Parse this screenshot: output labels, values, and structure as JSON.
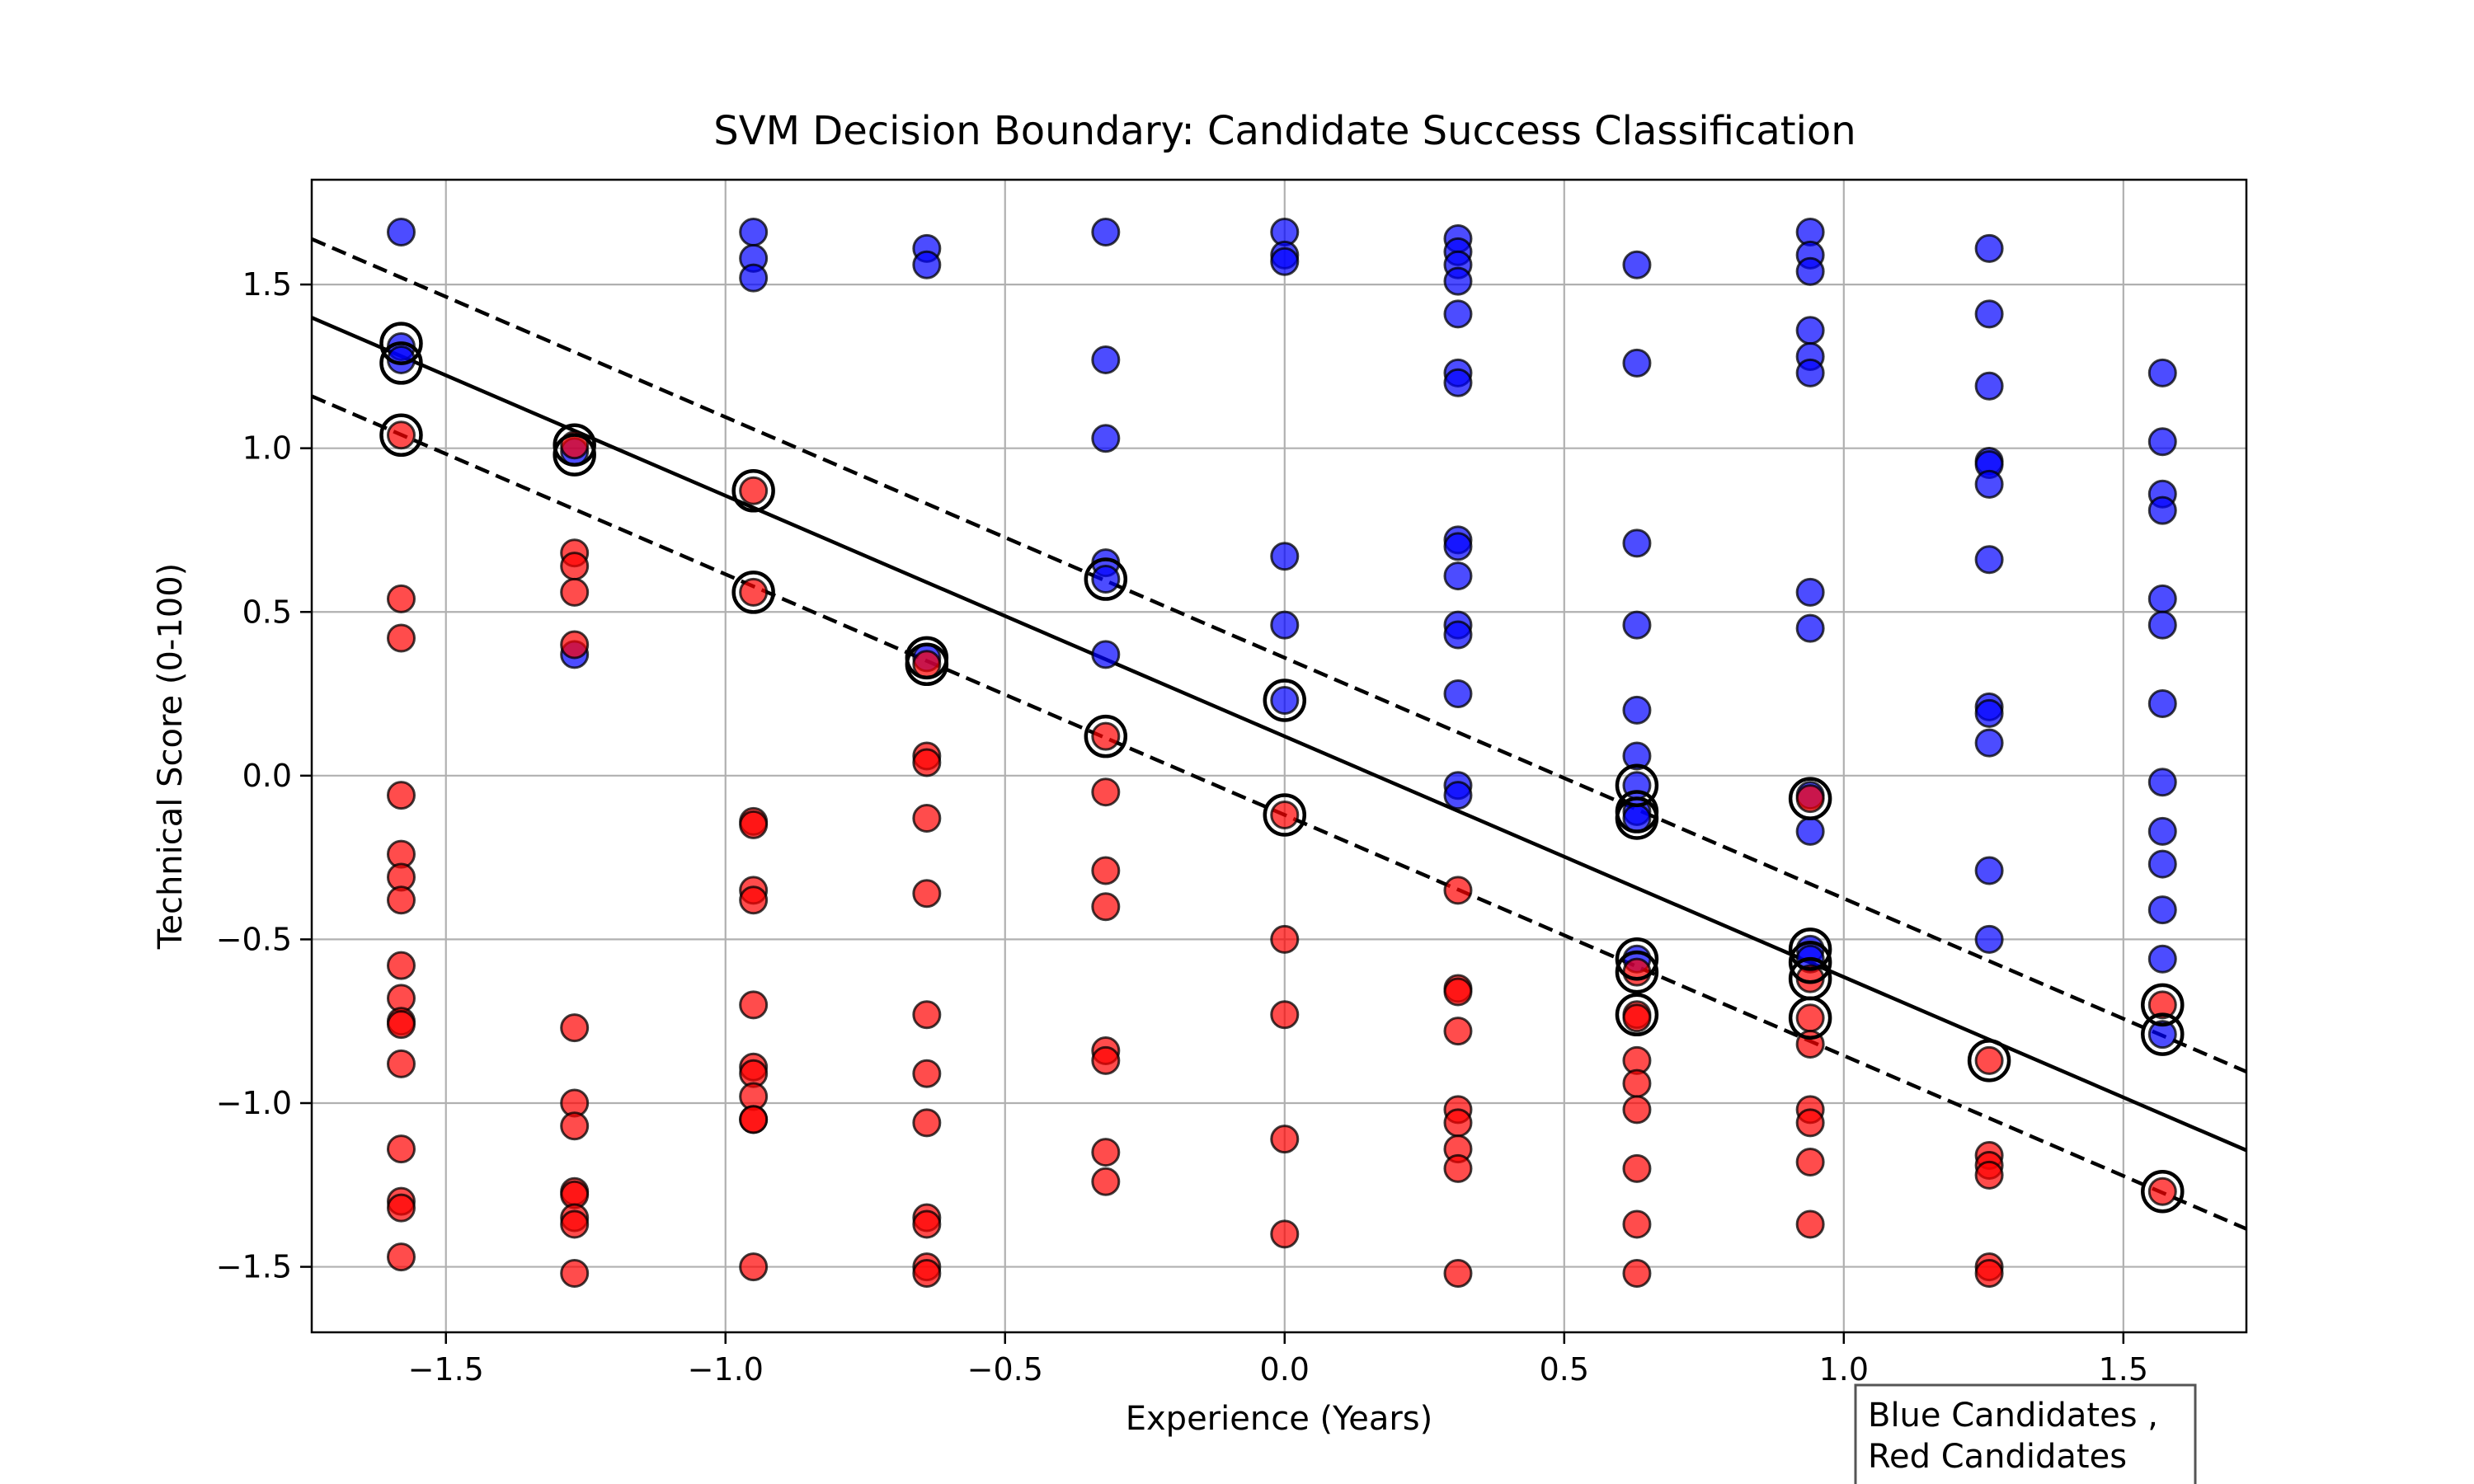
{
  "chart_data": {
    "type": "scatter",
    "title": "SVM Decision Boundary: Candidate Success Classification",
    "xlabel": "Experience (Years)",
    "ylabel": "Technical Score (0-100)",
    "xlim": [
      -1.74,
      1.72
    ],
    "ylim": [
      -1.7,
      1.82
    ],
    "grid": true,
    "xticks": [
      -1.5,
      -1.0,
      -0.5,
      0.0,
      0.5,
      1.0,
      1.5
    ],
    "xtick_labels": [
      "−1.5",
      "−1.0",
      "−0.5",
      "0.0",
      "0.5",
      "1.0",
      "1.5"
    ],
    "yticks": [
      -1.5,
      -1.0,
      -0.5,
      0.0,
      0.5,
      1.0,
      1.5
    ],
    "ytick_labels": [
      "−1.5",
      "−1.0",
      "−0.5",
      "0.0",
      "0.5",
      "1.0",
      "1.5"
    ],
    "legend": {
      "placement": "bottom-right-outside",
      "lines": [
        "Blue Candidates ,",
        "Red Candidates"
      ]
    },
    "colors": {
      "blue": "#0000ff",
      "red": "#ff0000",
      "edge": "#000000",
      "boundary": "#000000"
    },
    "decision_boundary": {
      "slope": -0.735,
      "intercept": 0.12
    },
    "margins": [
      {
        "slope": -0.735,
        "intercept": 0.36
      },
      {
        "slope": -0.735,
        "intercept": -0.12
      }
    ],
    "series": [
      {
        "color": "blue",
        "points": [
          [
            -1.58,
            1.66
          ],
          [
            -1.58,
            1.31
          ],
          [
            -1.58,
            1.27
          ],
          [
            -1.27,
            0.99
          ],
          [
            -1.27,
            0.37
          ],
          [
            -0.95,
            1.66
          ],
          [
            -0.95,
            1.58
          ],
          [
            -0.95,
            1.52
          ],
          [
            -0.64,
            1.61
          ],
          [
            -0.64,
            1.56
          ],
          [
            -0.64,
            0.36
          ],
          [
            -0.32,
            1.66
          ],
          [
            -0.32,
            1.27
          ],
          [
            -0.32,
            1.03
          ],
          [
            -0.32,
            0.65
          ],
          [
            -0.32,
            0.6
          ],
          [
            -0.32,
            0.37
          ],
          [
            0.0,
            1.66
          ],
          [
            0.0,
            1.59
          ],
          [
            0.0,
            1.57
          ],
          [
            0.0,
            0.67
          ],
          [
            0.0,
            0.46
          ],
          [
            0.0,
            0.23
          ],
          [
            0.31,
            1.64
          ],
          [
            0.31,
            1.6
          ],
          [
            0.31,
            1.56
          ],
          [
            0.31,
            1.51
          ],
          [
            0.31,
            1.41
          ],
          [
            0.31,
            1.23
          ],
          [
            0.31,
            1.2
          ],
          [
            0.31,
            0.72
          ],
          [
            0.31,
            0.7
          ],
          [
            0.31,
            0.61
          ],
          [
            0.31,
            0.46
          ],
          [
            0.31,
            0.43
          ],
          [
            0.31,
            0.25
          ],
          [
            0.31,
            -0.03
          ],
          [
            0.31,
            -0.06
          ],
          [
            0.63,
            1.56
          ],
          [
            0.63,
            1.26
          ],
          [
            0.63,
            0.71
          ],
          [
            0.63,
            0.46
          ],
          [
            0.63,
            0.2
          ],
          [
            0.63,
            0.06
          ],
          [
            0.63,
            -0.03
          ],
          [
            0.63,
            -0.11
          ],
          [
            0.63,
            -0.13
          ],
          [
            0.63,
            -0.56
          ],
          [
            0.94,
            1.66
          ],
          [
            0.94,
            1.59
          ],
          [
            0.94,
            1.54
          ],
          [
            0.94,
            1.36
          ],
          [
            0.94,
            1.28
          ],
          [
            0.94,
            1.23
          ],
          [
            0.94,
            0.56
          ],
          [
            0.94,
            0.45
          ],
          [
            0.94,
            -0.06
          ],
          [
            0.94,
            -0.17
          ],
          [
            0.94,
            -0.53
          ],
          [
            0.94,
            -0.56
          ],
          [
            1.26,
            1.61
          ],
          [
            1.26,
            1.41
          ],
          [
            1.26,
            1.19
          ],
          [
            1.26,
            0.96
          ],
          [
            1.26,
            0.95
          ],
          [
            1.26,
            0.89
          ],
          [
            1.26,
            0.66
          ],
          [
            1.26,
            0.21
          ],
          [
            1.26,
            0.19
          ],
          [
            1.26,
            0.1
          ],
          [
            1.26,
            -0.29
          ],
          [
            1.26,
            -0.5
          ],
          [
            1.57,
            1.23
          ],
          [
            1.57,
            1.02
          ],
          [
            1.57,
            0.86
          ],
          [
            1.57,
            0.81
          ],
          [
            1.57,
            0.54
          ],
          [
            1.57,
            0.46
          ],
          [
            1.57,
            0.22
          ],
          [
            1.57,
            -0.02
          ],
          [
            1.57,
            -0.17
          ],
          [
            1.57,
            -0.27
          ],
          [
            1.57,
            -0.41
          ],
          [
            1.57,
            -0.56
          ],
          [
            1.57,
            -0.79
          ]
        ]
      },
      {
        "color": "red",
        "points": [
          [
            -1.58,
            1.04
          ],
          [
            -1.58,
            0.54
          ],
          [
            -1.58,
            0.42
          ],
          [
            -1.58,
            -0.06
          ],
          [
            -1.58,
            -0.24
          ],
          [
            -1.58,
            -0.31
          ],
          [
            -1.58,
            -0.38
          ],
          [
            -1.58,
            -0.58
          ],
          [
            -1.58,
            -0.68
          ],
          [
            -1.58,
            -0.75
          ],
          [
            -1.58,
            -0.76
          ],
          [
            -1.58,
            -0.88
          ],
          [
            -1.58,
            -1.14
          ],
          [
            -1.58,
            -1.3
          ],
          [
            -1.58,
            -1.32
          ],
          [
            -1.58,
            -1.47
          ],
          [
            -1.27,
            1.01
          ],
          [
            -1.27,
            0.68
          ],
          [
            -1.27,
            0.64
          ],
          [
            -1.27,
            0.56
          ],
          [
            -1.27,
            0.4
          ],
          [
            -1.27,
            -0.77
          ],
          [
            -1.27,
            -1.0
          ],
          [
            -1.27,
            -1.07
          ],
          [
            -1.27,
            -1.27
          ],
          [
            -1.27,
            -1.28
          ],
          [
            -1.27,
            -1.35
          ],
          [
            -1.27,
            -1.37
          ],
          [
            -1.27,
            -1.52
          ],
          [
            -0.95,
            0.87
          ],
          [
            -0.95,
            0.56
          ],
          [
            -0.95,
            -0.14
          ],
          [
            -0.95,
            -0.15
          ],
          [
            -0.95,
            -0.35
          ],
          [
            -0.95,
            -0.38
          ],
          [
            -0.95,
            -0.7
          ],
          [
            -0.95,
            -0.89
          ],
          [
            -0.95,
            -0.91
          ],
          [
            -0.95,
            -0.98
          ],
          [
            -0.95,
            -1.05
          ],
          [
            -0.95,
            -1.05
          ],
          [
            -0.95,
            -1.5
          ],
          [
            -0.64,
            0.34
          ],
          [
            -0.64,
            0.06
          ],
          [
            -0.64,
            0.04
          ],
          [
            -0.64,
            -0.13
          ],
          [
            -0.64,
            -0.36
          ],
          [
            -0.64,
            -0.73
          ],
          [
            -0.64,
            -0.91
          ],
          [
            -0.64,
            -1.06
          ],
          [
            -0.64,
            -1.35
          ],
          [
            -0.64,
            -1.37
          ],
          [
            -0.64,
            -1.5
          ],
          [
            -0.64,
            -1.52
          ],
          [
            -0.32,
            0.12
          ],
          [
            -0.32,
            -0.05
          ],
          [
            -0.32,
            -0.29
          ],
          [
            -0.32,
            -0.4
          ],
          [
            -0.32,
            -0.84
          ],
          [
            -0.32,
            -0.87
          ],
          [
            -0.32,
            -1.15
          ],
          [
            -0.32,
            -1.24
          ],
          [
            0.0,
            -0.12
          ],
          [
            0.0,
            -0.5
          ],
          [
            0.0,
            -0.73
          ],
          [
            0.0,
            -1.11
          ],
          [
            0.0,
            -1.4
          ],
          [
            0.31,
            -0.35
          ],
          [
            0.31,
            -0.65
          ],
          [
            0.31,
            -0.66
          ],
          [
            0.31,
            -0.78
          ],
          [
            0.31,
            -1.02
          ],
          [
            0.31,
            -1.06
          ],
          [
            0.31,
            -1.14
          ],
          [
            0.31,
            -1.2
          ],
          [
            0.31,
            -1.52
          ],
          [
            0.63,
            -0.6
          ],
          [
            0.63,
            -0.73
          ],
          [
            0.63,
            -0.74
          ],
          [
            0.63,
            -0.87
          ],
          [
            0.63,
            -0.94
          ],
          [
            0.63,
            -1.02
          ],
          [
            0.63,
            -1.2
          ],
          [
            0.63,
            -1.37
          ],
          [
            0.63,
            -1.52
          ],
          [
            0.94,
            -0.07
          ],
          [
            0.94,
            -0.62
          ],
          [
            0.94,
            -0.74
          ],
          [
            0.94,
            -0.82
          ],
          [
            0.94,
            -1.02
          ],
          [
            0.94,
            -1.06
          ],
          [
            0.94,
            -1.18
          ],
          [
            0.94,
            -1.37
          ],
          [
            1.26,
            -0.87
          ],
          [
            1.26,
            -1.16
          ],
          [
            1.26,
            -1.19
          ],
          [
            1.26,
            -1.22
          ],
          [
            1.26,
            -1.5
          ],
          [
            1.26,
            -1.52
          ],
          [
            1.57,
            -0.7
          ],
          [
            1.57,
            -1.27
          ]
        ]
      }
    ],
    "support_vectors": [
      [
        -1.58,
        1.32
      ],
      [
        -1.58,
        1.26
      ],
      [
        -1.58,
        1.04
      ],
      [
        -1.27,
        1.01
      ],
      [
        -1.27,
        0.98
      ],
      [
        -0.95,
        0.87
      ],
      [
        -0.95,
        0.56
      ],
      [
        -0.64,
        0.36
      ],
      [
        -0.64,
        0.34
      ],
      [
        -0.32,
        0.6
      ],
      [
        -0.32,
        0.12
      ],
      [
        0.0,
        0.23
      ],
      [
        0.0,
        -0.12
      ],
      [
        0.63,
        -0.03
      ],
      [
        0.63,
        -0.11
      ],
      [
        0.63,
        -0.13
      ],
      [
        0.63,
        -0.56
      ],
      [
        0.63,
        -0.6
      ],
      [
        0.63,
        -0.73
      ],
      [
        0.94,
        -0.07
      ],
      [
        0.94,
        -0.53
      ],
      [
        0.94,
        -0.57
      ],
      [
        0.94,
        -0.62
      ],
      [
        0.94,
        -0.74
      ],
      [
        1.26,
        -0.87
      ],
      [
        1.57,
        -0.7
      ],
      [
        1.57,
        -0.79
      ],
      [
        1.57,
        -1.27
      ]
    ]
  }
}
